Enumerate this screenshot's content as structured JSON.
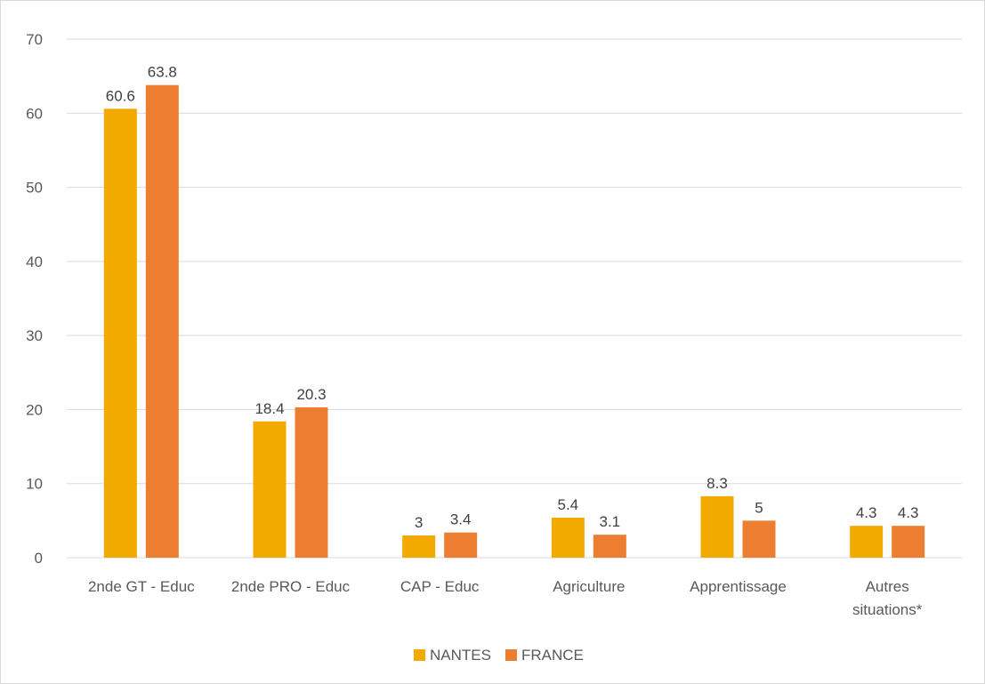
{
  "chart_data": {
    "type": "bar",
    "title": "",
    "xlabel": "",
    "ylabel": "",
    "categories": [
      [
        "2nde GT - Educ"
      ],
      [
        "2nde PRO - Educ"
      ],
      [
        "CAP - Educ"
      ],
      [
        "Agriculture"
      ],
      [
        "Apprentissage"
      ],
      [
        "Autres",
        "situations*"
      ]
    ],
    "series": [
      {
        "name": "NANTES",
        "color": "#F2A900",
        "values": [
          60.6,
          18.4,
          3,
          5.4,
          8.3,
          4.3
        ]
      },
      {
        "name": "FRANCE",
        "color": "#ED7D31",
        "values": [
          63.8,
          20.3,
          3.4,
          3.1,
          5,
          4.3
        ]
      }
    ],
    "ylim": [
      0,
      70
    ],
    "yticks": [
      0,
      10,
      20,
      30,
      40,
      50,
      60,
      70
    ],
    "grid": true,
    "legend_position": "bottom"
  }
}
